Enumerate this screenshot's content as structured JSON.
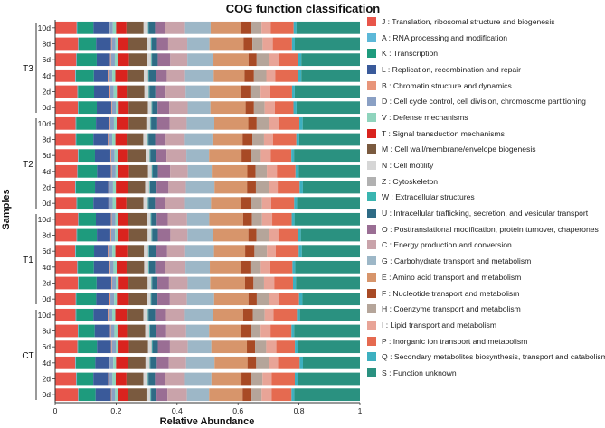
{
  "chart_data": {
    "type": "stacked-bar-horizontal",
    "title": "COG function classification",
    "xlabel": "Relative Abundance",
    "ylabel": "Samples",
    "xlim": [
      0,
      1
    ],
    "xticks": [
      "0",
      "0.2",
      "0.4",
      "0.6",
      "0.8",
      "1"
    ],
    "groups": [
      {
        "name": "T3",
        "samples": [
          "10d",
          "8d",
          "6d",
          "4d",
          "2d",
          "0d"
        ]
      },
      {
        "name": "T2",
        "samples": [
          "10d",
          "8d",
          "6d",
          "4d",
          "2d",
          "0d"
        ]
      },
      {
        "name": "T1",
        "samples": [
          "10d",
          "8d",
          "6d",
          "4d",
          "2d",
          "0d"
        ]
      },
      {
        "name": "CT",
        "samples": [
          "10d",
          "8d",
          "6d",
          "4d",
          "2d",
          "0d"
        ]
      }
    ],
    "legend_position": "right",
    "series": [
      {
        "code": "J",
        "name": "Translation, ribosomal structure and biogenesis",
        "color": "#e8554a",
        "value": 0.072
      },
      {
        "code": "A",
        "name": "RNA processing and modification",
        "color": "#5cb8d8",
        "value": 0.002
      },
      {
        "code": "K",
        "name": "Transcription",
        "color": "#1e9b7d",
        "value": 0.06
      },
      {
        "code": "L",
        "name": "Replication, recombination and repair",
        "color": "#3a5a9a",
        "value": 0.048
      },
      {
        "code": "B",
        "name": "Chromatin structure and dynamics",
        "color": "#e8957a",
        "value": 0.003
      },
      {
        "code": "D",
        "name": "Cell cycle control, cell division, chromosome partitioning",
        "color": "#8aa0c4",
        "value": 0.012
      },
      {
        "code": "V",
        "name": "Defense mechanisms",
        "color": "#8fd4bd",
        "value": 0.01
      },
      {
        "code": "T",
        "name": "Signal transduction mechanisms",
        "color": "#d9231e",
        "value": 0.036
      },
      {
        "code": "M",
        "name": "Cell wall/membrane/envelope biogenesis",
        "color": "#7a5a3f",
        "value": 0.06
      },
      {
        "code": "N",
        "name": "Cell motility",
        "color": "#d6d6d6",
        "value": 0.012
      },
      {
        "code": "Z",
        "name": "Cytoskeleton",
        "color": "#b1b1b1",
        "value": 0.002
      },
      {
        "code": "W",
        "name": "Extracellular structures",
        "color": "#3ab5b0",
        "value": 0.002
      },
      {
        "code": "U",
        "name": "Intracellular trafficking, secretion, and vesicular transport",
        "color": "#2e6b85",
        "value": 0.02
      },
      {
        "code": "O",
        "name": "Posttranslational modification, protein turnover, chaperones",
        "color": "#9a6e94",
        "value": 0.038
      },
      {
        "code": "C",
        "name": "Energy production and conversion",
        "color": "#c9a3aa",
        "value": 0.062
      },
      {
        "code": "G",
        "name": "Carbohydrate transport and metabolism",
        "color": "#9db7c7",
        "value": 0.085
      },
      {
        "code": "E",
        "name": "Amino acid transport and metabolism",
        "color": "#d7956b",
        "value": 0.11
      },
      {
        "code": "F",
        "name": "Nucleotide transport and metabolism",
        "color": "#a84a25",
        "value": 0.03
      },
      {
        "code": "H",
        "name": "Coenzyme transport and metabolism",
        "color": "#b5a59a",
        "value": 0.038
      },
      {
        "code": "I",
        "name": "Lipid transport and metabolism",
        "color": "#e8a497",
        "value": 0.032
      },
      {
        "code": "P",
        "name": "Inorganic ion transport and metabolism",
        "color": "#e56a50",
        "value": 0.07
      },
      {
        "code": "Q",
        "name": "Secondary metabolites biosynthesis, transport and catabolism",
        "color": "#3db0c0",
        "value": 0.01
      },
      {
        "code": "S",
        "name": "Function unknown",
        "color": "#2a9180",
        "value": 0.206
      }
    ]
  }
}
